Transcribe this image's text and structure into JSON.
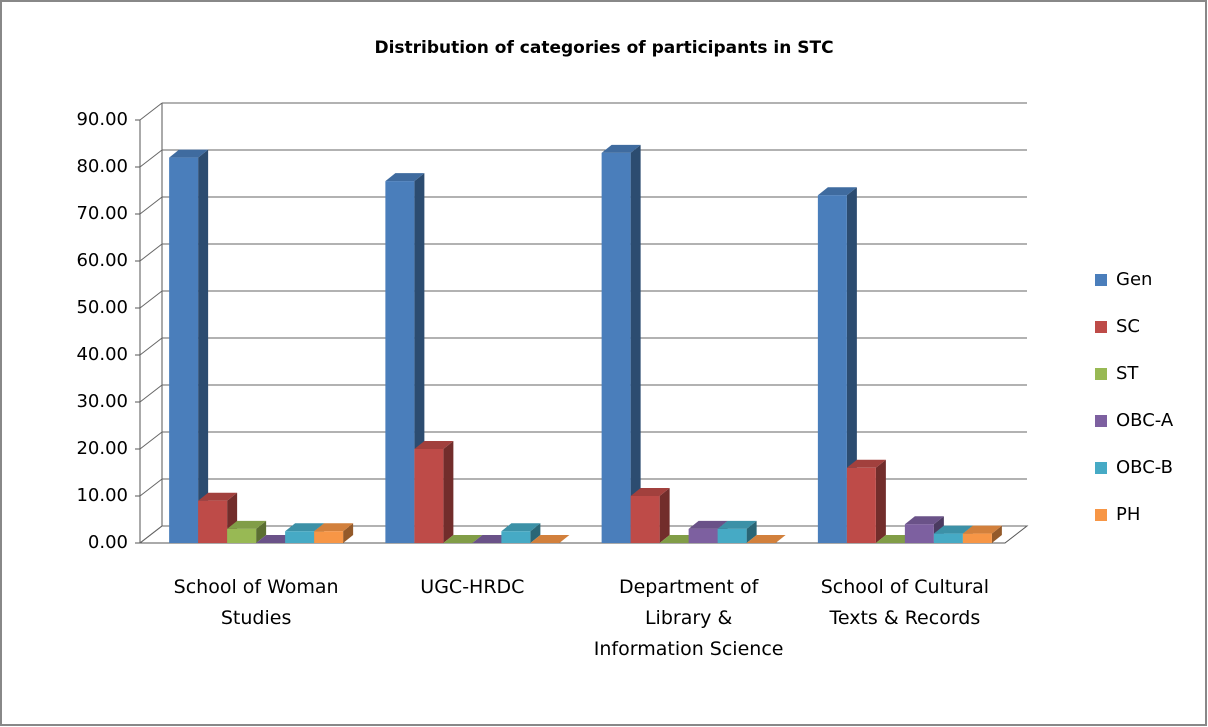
{
  "chart_data": {
    "type": "bar3d",
    "title": "Distribution of categories of participants in STC",
    "categories": [
      "School of Woman Studies",
      "UGC-HRDC",
      "Department of Library & Information Science",
      "School of Cultural Texts & Records"
    ],
    "series": [
      {
        "name": "Gen",
        "color": "#4a7ebb",
        "values": [
          82,
          77,
          83,
          74
        ]
      },
      {
        "name": "SC",
        "color": "#be4b48",
        "values": [
          9,
          20,
          10,
          16
        ]
      },
      {
        "name": "ST",
        "color": "#98b954",
        "values": [
          3,
          0,
          0,
          0
        ]
      },
      {
        "name": "OBC-A",
        "color": "#7d60a0",
        "values": [
          0,
          0,
          3,
          4
        ]
      },
      {
        "name": "OBC-B",
        "color": "#46aac5",
        "values": [
          2.5,
          2.5,
          3,
          2
        ]
      },
      {
        "name": "PH",
        "color": "#f79646",
        "values": [
          2.5,
          0,
          0,
          2
        ]
      }
    ],
    "ylim": [
      0,
      90
    ],
    "yticks": [
      {
        "value": 0,
        "label": "0.00"
      },
      {
        "value": 10,
        "label": "10.00"
      },
      {
        "value": 20,
        "label": "20.00"
      },
      {
        "value": 30,
        "label": "30.00"
      },
      {
        "value": 40,
        "label": "40.00"
      },
      {
        "value": 50,
        "label": "50.00"
      },
      {
        "value": 60,
        "label": "60.00"
      },
      {
        "value": 70,
        "label": "70.00"
      },
      {
        "value": 80,
        "label": "80.00"
      },
      {
        "value": 90,
        "label": "90.00"
      }
    ],
    "grid": true,
    "legend": "right"
  }
}
